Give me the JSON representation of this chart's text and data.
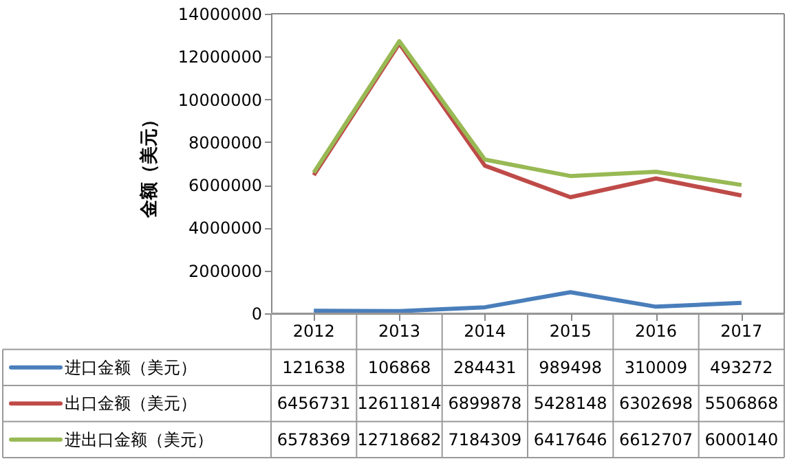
{
  "chart_data": {
    "type": "line",
    "ylabel": "金额（美元）",
    "categories": [
      "2012",
      "2013",
      "2014",
      "2015",
      "2016",
      "2017"
    ],
    "series": [
      {
        "name": "进口金额（美元）",
        "color": "#4a7ebb",
        "values": [
          121638,
          106868,
          284431,
          989498,
          310009,
          493272
        ]
      },
      {
        "name": "出口金额（美元）",
        "color": "#be4b48",
        "values": [
          6456731,
          12611814,
          6899878,
          5428148,
          6302698,
          5506868
        ]
      },
      {
        "name": "进出口金额（美元）",
        "color": "#98b954",
        "values": [
          6578369,
          12718682,
          7184309,
          6417646,
          6612707,
          6000140
        ]
      }
    ],
    "ylim": [
      0,
      14000000
    ],
    "yticks": [
      0,
      2000000,
      4000000,
      6000000,
      8000000,
      10000000,
      12000000,
      14000000
    ],
    "data_labels": true,
    "legend": "bottom",
    "grid": false,
    "line_style": "solid",
    "marker": "none"
  }
}
